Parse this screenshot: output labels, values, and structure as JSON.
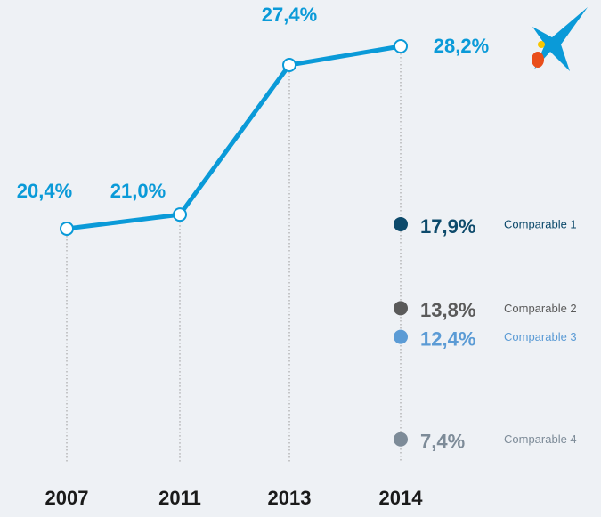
{
  "chart_data": {
    "type": "line",
    "categories": [
      "2007",
      "2011",
      "2013",
      "2014"
    ],
    "values": [
      20.4,
      21.0,
      27.4,
      28.2
    ],
    "value_labels": [
      "20,4%",
      "21,0%",
      "27,4%",
      "28,2%"
    ],
    "color": "#0a9ad8",
    "ylim": [
      18,
      30
    ],
    "y2lim": [
      5,
      20
    ],
    "points": [
      {
        "name": "Comparable 1",
        "color": "#0d4a6b",
        "value": 17.9,
        "value_label": "17,9%",
        "axis": "y2"
      },
      {
        "name": "Comparable 2",
        "color": "#5a5a5a",
        "value": 13.8,
        "value_label": "13,8%",
        "axis": "y2"
      },
      {
        "name": "Comparable 3",
        "color": "#5b9bd5",
        "value": 12.4,
        "value_label": "12,4%",
        "axis": "y2"
      },
      {
        "name": "Comparable 4",
        "color": "#7d8b98",
        "value": 7.4,
        "value_label": "7,4%",
        "axis": "y2"
      }
    ]
  }
}
